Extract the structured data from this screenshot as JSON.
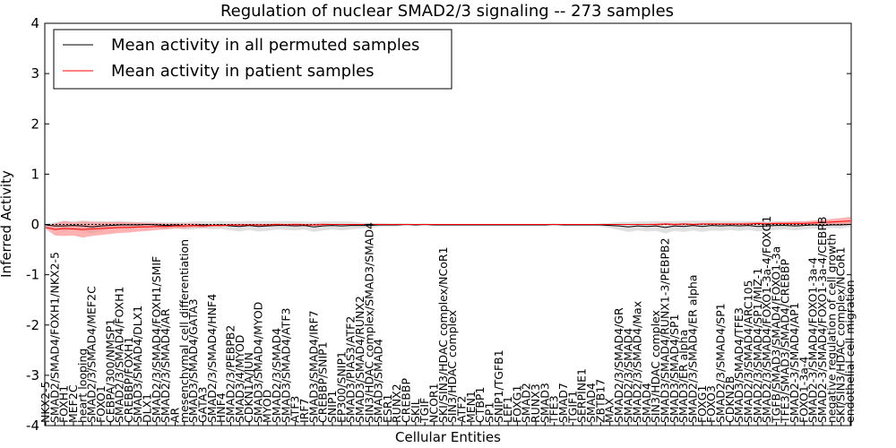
{
  "chart_data": {
    "type": "line",
    "title": "Regulation of nuclear SMAD2/3 signaling -- 273 samples",
    "xlabel": "Cellular Entities",
    "ylabel": "Inferred Activity",
    "ylim": [
      -4,
      4
    ],
    "yticks": [
      "-4",
      "-3",
      "-2",
      "-1",
      "0",
      "1",
      "2",
      "3",
      "4"
    ],
    "legend_position": "top-left",
    "categories": [
      "NKX2-5",
      "SMAD2/SMAD4/FOXH1/NKX2-5",
      "FOXH1",
      "MEF2C",
      "heart looping",
      "SMAD2/3/SMAD4/MEF2C",
      "FOXO1",
      "CEBPA/300/NMSP1",
      "SMAD2/3/SMAD4/FOXH1",
      "CREBBP/FOXH1",
      "SMAD3/SMAD4/DLX1",
      "DLX1",
      "SMAD2/3/SMAD4/FOXH1/SMIF",
      "SMAD2/3/SMAD4/AR",
      "AR",
      "mesenchymal cell differentiation",
      "SMAD3/SMAD4/GATA3",
      "GATA3",
      "SMAD2/3/SMAD4/HNF4",
      "HNF4",
      "SMAD2/3/PEBPB2",
      "SMAD3/4/MYOD",
      "CDKN1A/JUN",
      "SMAD3/SMAD4/MYOD",
      "MYOD",
      "SMAD2/3/SMAD4",
      "SMAD3/SMAD4/ATF3",
      "ATF3",
      "IRF7",
      "SMAD3/SMAD4/IRF7",
      "CREBBP/SNIP1",
      "SNIP1",
      "EP300/SNIP1",
      "SMAD3/PIAS3/ATF2",
      "SMAD3/SMAD4/RUNX2",
      "SIN3/HDAC complex/SMAD3/SMAD4",
      "SMAD3/SMAD4",
      "ESR1",
      "RUNX2",
      "CREBBP",
      "SKIL",
      "TGIF",
      "NCOR1",
      "SKI/SIN3/HDAC complex/NCoR1",
      "SIN3/HDAC complex",
      "ATF2",
      "MEN1",
      "CTBP1",
      "SP1",
      "SNIP1/TGFB1",
      "LEF1",
      "FOXG1",
      "SMAD2",
      "RUNX3",
      "SMAD3",
      "TFE3",
      "SMAD7",
      "TGIF1",
      "SERPINE1",
      "SMAD4",
      "ZBTB17",
      "MAX",
      "SMAD2/3/SMAD4/GR",
      "SMAD2/3/SMAD4",
      "SMAD2/3/SMAD4/Max",
      "SMAD4",
      "SIN3/HDAC complex",
      "SMAD3/SMAD4/RUNX1-3/PEBPB2",
      "SMAD3/SMAD4/SP1",
      "SMAD3/ER alpha",
      "SMAD2/3/SMAD4/ER alpha",
      "FOXG1",
      "FOXO3",
      "SMAD2/3/SMAD4/SP1",
      "CDKN2B",
      "SMAD3/SMAD4/TFE3",
      "SMAD2/3/SMAD4/ARC105",
      "SMAD2/3/SMAD4/SP1/MIZ-1",
      "SMAD2/3/SMAD4/FOXO1-3a-4/FOXG1",
      "TGFB/SMAD3/SMAD4/FOXO1-3a",
      "TFE3/SMAD3/SMAD4/CREBBP",
      "SMAD2-3/SMAD4/AP1",
      "FOXO1-3a-4",
      "SMAD2-3/SMAD4/FOXO1-3a-4",
      "SMAD2-3/SMAD4/FOXO1-3a-4/CEBPB",
      "negative regulation of cell growth",
      "SKI/SIN3/HDAC complex/NCoR1",
      "endothelial cell migration"
    ],
    "series": [
      {
        "name": "Mean activity in all permuted samples",
        "color": "#000000",
        "values": [
          -0.01,
          -0.03,
          -0.03,
          -0.02,
          -0.03,
          -0.05,
          -0.03,
          -0.02,
          -0.01,
          -0.01,
          -0.01,
          0.0,
          -0.01,
          -0.02,
          -0.01,
          -0.03,
          -0.02,
          -0.01,
          -0.02,
          -0.01,
          -0.03,
          -0.04,
          -0.02,
          -0.04,
          -0.03,
          -0.02,
          -0.02,
          -0.03,
          -0.02,
          -0.05,
          -0.03,
          -0.02,
          -0.03,
          -0.02,
          -0.02,
          -0.02,
          -0.01,
          -0.01,
          -0.01,
          0.0,
          -0.01,
          0.0,
          -0.01,
          -0.01,
          -0.01,
          -0.01,
          -0.01,
          -0.01,
          -0.01,
          -0.01,
          -0.01,
          -0.01,
          -0.01,
          -0.01,
          -0.01,
          0.0,
          -0.01,
          -0.01,
          -0.01,
          -0.01,
          -0.01,
          -0.02,
          -0.03,
          -0.05,
          -0.03,
          -0.04,
          -0.03,
          -0.06,
          -0.03,
          -0.04,
          -0.02,
          -0.04,
          -0.02,
          -0.03,
          -0.02,
          -0.03,
          -0.02,
          -0.04,
          -0.03,
          -0.02,
          -0.02,
          -0.03,
          -0.02,
          -0.01,
          -0.02,
          -0.01,
          -0.01,
          0.0
        ]
      },
      {
        "name": "Mean activity in patient samples",
        "color": "#ff0000",
        "values": [
          -0.06,
          -0.1,
          -0.08,
          -0.09,
          -0.1,
          -0.09,
          -0.08,
          -0.07,
          -0.06,
          -0.06,
          -0.05,
          -0.05,
          -0.04,
          -0.04,
          -0.03,
          -0.03,
          -0.02,
          -0.03,
          -0.02,
          -0.02,
          -0.01,
          -0.01,
          -0.01,
          -0.01,
          -0.01,
          0.0,
          -0.01,
          0.0,
          -0.01,
          -0.01,
          0.0,
          0.0,
          0.0,
          0.0,
          0.0,
          0.0,
          0.0,
          0.0,
          0.0,
          0.0,
          0.0,
          0.0,
          0.0,
          0.0,
          0.0,
          0.0,
          0.0,
          0.0,
          0.0,
          0.0,
          0.0,
          0.0,
          0.0,
          0.0,
          0.0,
          0.0,
          0.0,
          0.0,
          0.0,
          0.0,
          0.0,
          0.0,
          0.0,
          0.0,
          0.0,
          0.0,
          0.0,
          0.01,
          0.0,
          0.01,
          0.0,
          0.01,
          0.01,
          0.01,
          0.01,
          0.01,
          0.01,
          0.02,
          0.01,
          0.02,
          0.02,
          0.02,
          0.02,
          0.03,
          0.04,
          0.05,
          0.06,
          0.07
        ]
      }
    ],
    "band_permuted_halfwidth": [
      0.02,
      0.08,
      0.1,
      0.09,
      0.11,
      0.12,
      0.1,
      0.08,
      0.08,
      0.07,
      0.06,
      0.06,
      0.06,
      0.07,
      0.06,
      0.08,
      0.08,
      0.07,
      0.08,
      0.08,
      0.09,
      0.1,
      0.09,
      0.1,
      0.1,
      0.08,
      0.09,
      0.09,
      0.08,
      0.1,
      0.09,
      0.08,
      0.09,
      0.08,
      0.06,
      0.05,
      0.04,
      0.03,
      0.03,
      0.02,
      0.02,
      0.02,
      0.02,
      0.02,
      0.02,
      0.02,
      0.02,
      0.02,
      0.02,
      0.02,
      0.02,
      0.02,
      0.02,
      0.02,
      0.02,
      0.02,
      0.02,
      0.02,
      0.02,
      0.02,
      0.03,
      0.05,
      0.08,
      0.1,
      0.09,
      0.1,
      0.1,
      0.12,
      0.1,
      0.11,
      0.1,
      0.11,
      0.1,
      0.1,
      0.09,
      0.1,
      0.09,
      0.1,
      0.09,
      0.09,
      0.08,
      0.09,
      0.08,
      0.07,
      0.07,
      0.06,
      0.07,
      0.05
    ],
    "band_patient_halfwidth": [
      0.03,
      0.12,
      0.15,
      0.13,
      0.16,
      0.14,
      0.13,
      0.12,
      0.11,
      0.1,
      0.09,
      0.08,
      0.07,
      0.06,
      0.05,
      0.05,
      0.04,
      0.04,
      0.03,
      0.03,
      0.02,
      0.02,
      0.02,
      0.02,
      0.02,
      0.02,
      0.02,
      0.02,
      0.02,
      0.02,
      0.02,
      0.01,
      0.01,
      0.01,
      0.01,
      0.01,
      0.01,
      0.01,
      0.01,
      0.01,
      0.01,
      0.01,
      0.01,
      0.01,
      0.01,
      0.01,
      0.01,
      0.01,
      0.01,
      0.01,
      0.01,
      0.01,
      0.01,
      0.01,
      0.01,
      0.01,
      0.01,
      0.01,
      0.01,
      0.01,
      0.01,
      0.01,
      0.01,
      0.01,
      0.01,
      0.01,
      0.02,
      0.02,
      0.02,
      0.02,
      0.02,
      0.02,
      0.02,
      0.02,
      0.02,
      0.02,
      0.03,
      0.03,
      0.03,
      0.03,
      0.03,
      0.04,
      0.04,
      0.05,
      0.05,
      0.06,
      0.07,
      0.08
    ],
    "band_permuted_color": "#c8c8c8",
    "band_patient_color": "#ff7f7f"
  }
}
